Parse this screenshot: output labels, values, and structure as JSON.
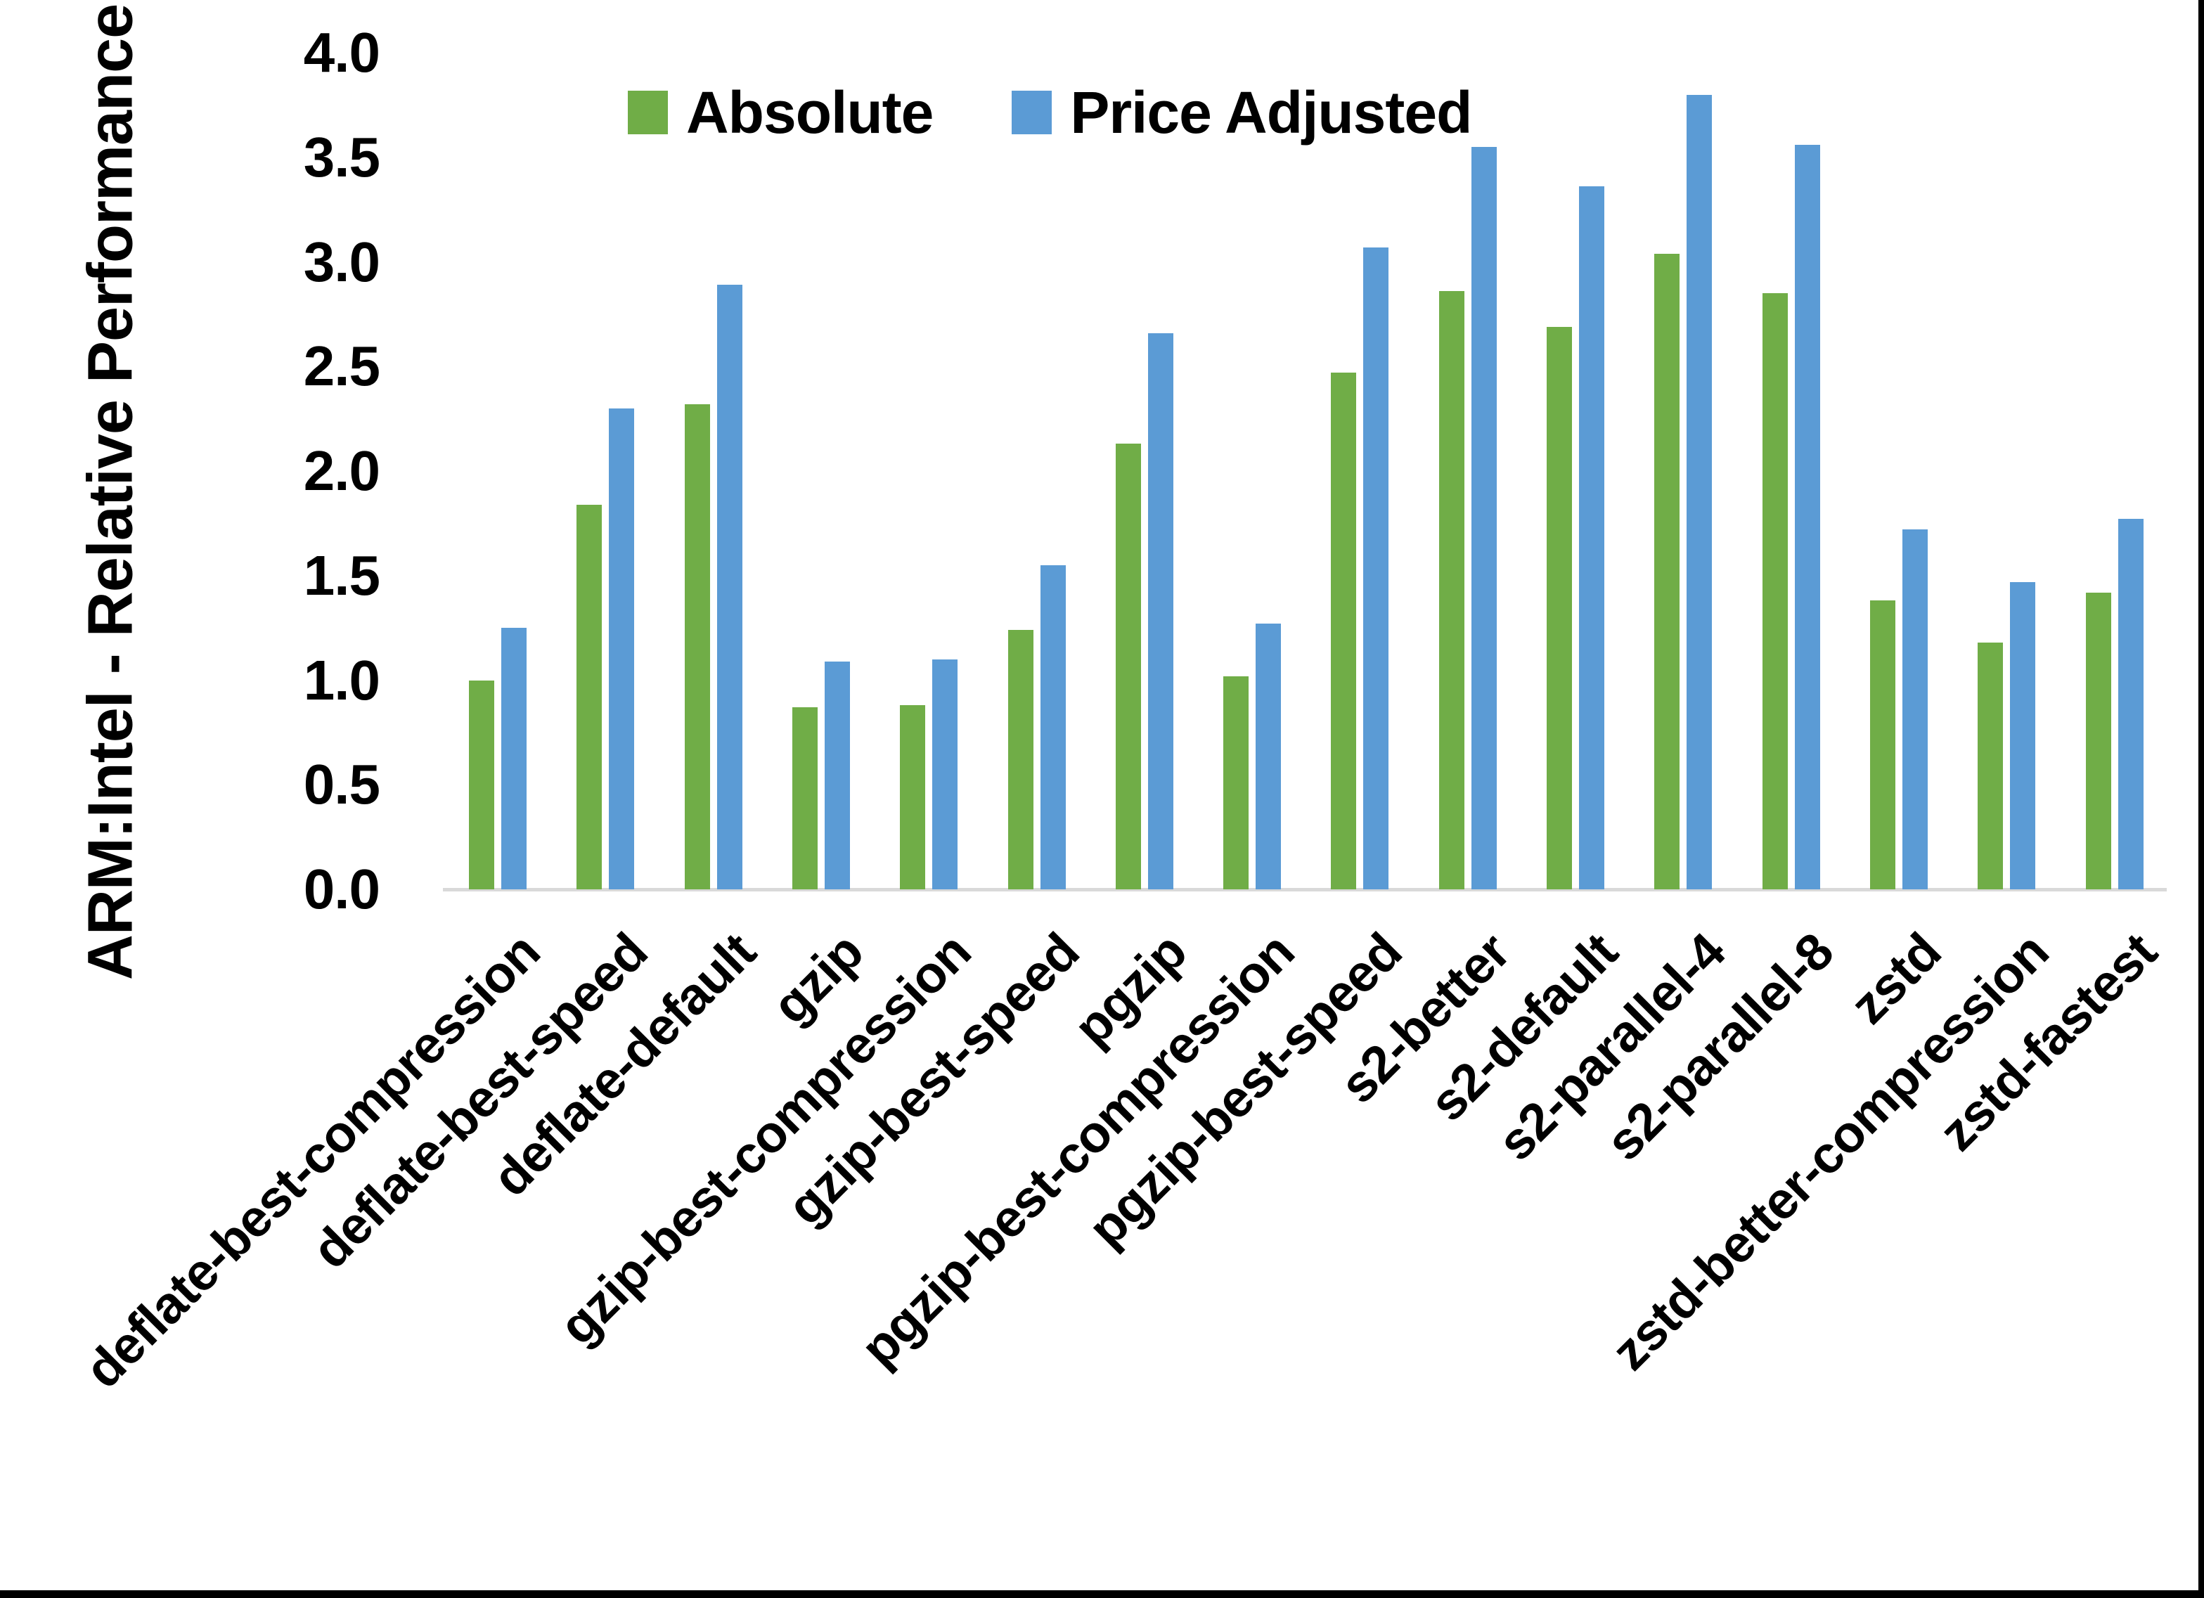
{
  "page": {
    "background": "#ffffff",
    "border_color": "#000000"
  },
  "chart_data": {
    "type": "bar",
    "title": "",
    "xlabel": "",
    "ylabel": "ARM:Intel - Relative Performance",
    "ylim": [
      0.0,
      4.0
    ],
    "ytick_step": 0.5,
    "ytick_labels": [
      "0.0",
      "0.5",
      "1.0",
      "1.5",
      "2.0",
      "2.5",
      "3.0",
      "3.5",
      "4.0"
    ],
    "grid": false,
    "legend_position": "top-center",
    "axis_line_color": "#D9D9D9",
    "text_color": "#000000",
    "categories": [
      "deflate-best-compression",
      "deflate-best-speed",
      "deflate-default",
      "gzip",
      "gzip-best-compression",
      "gzip-best-speed",
      "pgzip",
      "pgzip-best-compression",
      "pgzip-best-speed",
      "s2-better",
      "s2-default",
      "s2-parallel-4",
      "s2-parallel-8",
      "zstd",
      "zstd-better-compression",
      "zstd-fastest"
    ],
    "series": [
      {
        "name": "Absolute",
        "color": "#70AD47",
        "values": [
          1.0,
          1.84,
          2.32,
          0.87,
          0.88,
          1.24,
          2.13,
          1.02,
          2.47,
          2.86,
          2.69,
          3.04,
          2.85,
          1.38,
          1.18,
          1.42
        ]
      },
      {
        "name": "Price Adjusted",
        "color": "#5B9BD5",
        "values": [
          1.25,
          2.3,
          2.89,
          1.09,
          1.1,
          1.55,
          2.66,
          1.27,
          3.07,
          3.55,
          3.36,
          3.8,
          3.56,
          1.72,
          1.47,
          1.77
        ]
      }
    ]
  }
}
